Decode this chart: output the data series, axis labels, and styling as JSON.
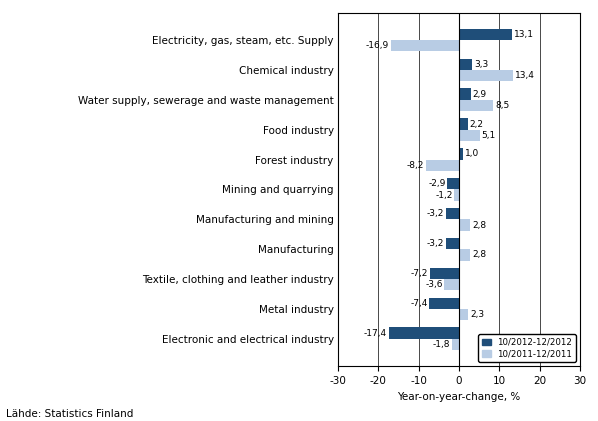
{
  "categories": [
    "Electronic and electrical industry",
    "Metal industry",
    "Textile, clothing and leather industry",
    "Manufacturing",
    "Manufacturing and mining",
    "Mining and quarrying",
    "Forest industry",
    "Food industry",
    "Water supply, sewerage and waste management",
    "Chemical industry",
    "Electricity, gas, steam, etc. Supply"
  ],
  "series_2012": [
    -17.4,
    -7.4,
    -7.2,
    -3.2,
    -3.2,
    -2.9,
    1.0,
    2.2,
    2.9,
    3.3,
    13.1
  ],
  "series_2011": [
    -1.8,
    2.3,
    -3.6,
    2.8,
    2.8,
    -1.2,
    -8.2,
    5.1,
    8.5,
    13.4,
    -16.9
  ],
  "color_2012": "#1F4E79",
  "color_2011": "#B8CCE4",
  "xlim": [
    -30,
    30
  ],
  "xticks": [
    -30,
    -20,
    -10,
    0,
    10,
    20,
    30
  ],
  "xlabel": "Year-on-year-change, %",
  "legend_2012": "10/2012-12/2012",
  "legend_2011": "10/2011-12/2011",
  "source": "Lähde: Statistics Finland",
  "bar_height": 0.38
}
